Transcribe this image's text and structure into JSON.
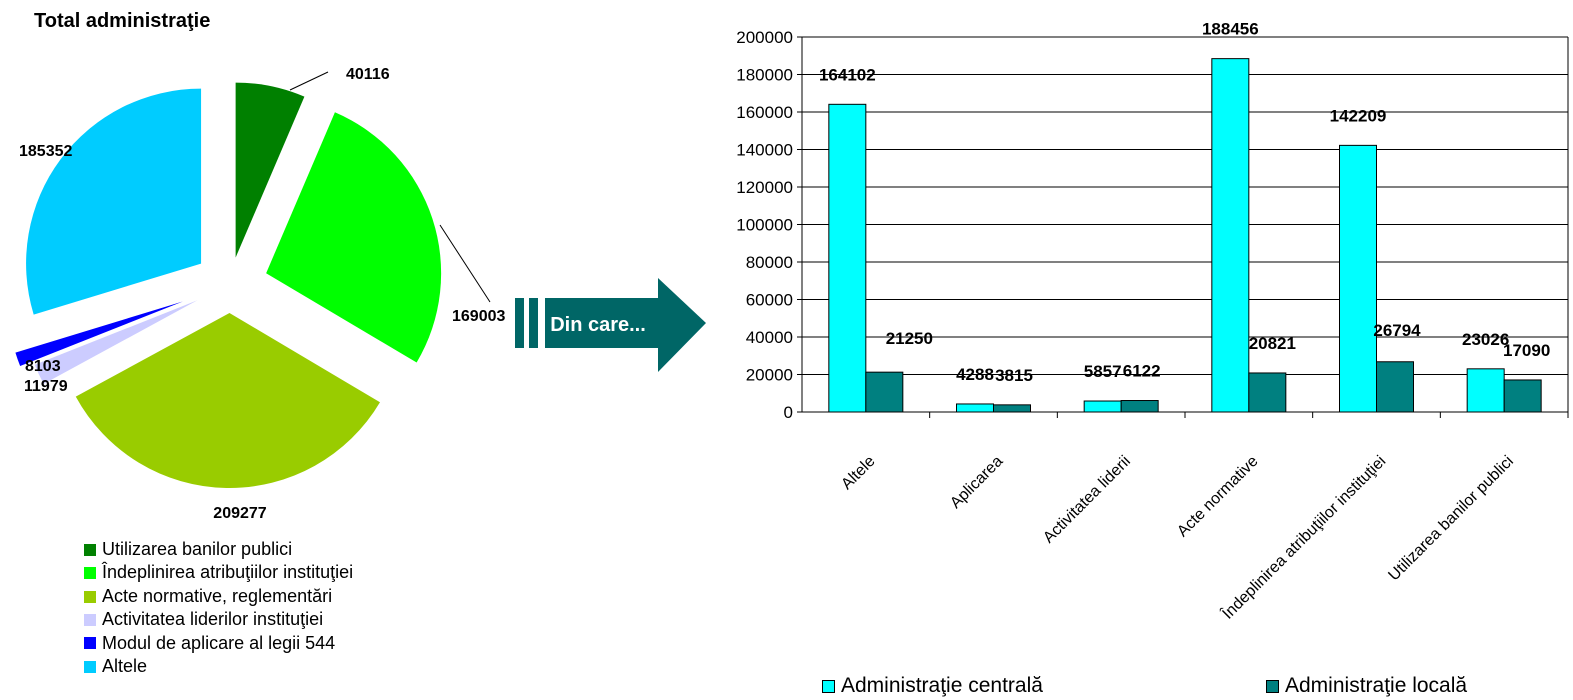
{
  "chart_data": [
    {
      "type": "pie",
      "title": "Total administraţie",
      "slices": [
        {
          "label": "Utilizarea banilor publici",
          "value": 40116,
          "color": "#008000"
        },
        {
          "label": "Îndeplinirea atribuţiilor instituţiei",
          "value": 169003,
          "color": "#00FF00"
        },
        {
          "label": "Acte normative, reglementări",
          "value": 209277,
          "color": "#99CC00"
        },
        {
          "label": "Activitatea liderilor instituţiei",
          "value": 11979,
          "color": "#CCCCFF"
        },
        {
          "label": "Modul de aplicare al legii 544",
          "value": 8103,
          "color": "#0000FF"
        },
        {
          "label": "Altele",
          "value": 185352,
          "color": "#00CCFF"
        }
      ],
      "legend_placement": "bottom"
    },
    {
      "type": "bar",
      "categories": [
        "Altele",
        "Aplicarea",
        "Activitatea liderii",
        "Acte normative",
        "Îndeplinirea atribuţiilor instituţiei",
        "Utilizarea banilor publici"
      ],
      "series": [
        {
          "name": "Administraţie centrală",
          "values": [
            164102,
            4288,
            5857,
            188456,
            142209,
            23026
          ],
          "color": "#00FFFF"
        },
        {
          "name": "Administraţie locală",
          "values": [
            21250,
            3815,
            6122,
            20821,
            26794,
            17090
          ],
          "color": "#008080"
        }
      ],
      "ylim": [
        0,
        200000
      ],
      "yticks": [
        "0",
        "20000",
        "40000",
        "60000",
        "80000",
        "100000",
        "120000",
        "140000",
        "160000",
        "180000",
        "200000"
      ],
      "grid": true,
      "legend_placement": "bottom"
    }
  ],
  "arrow": {
    "label": "Din care..."
  }
}
